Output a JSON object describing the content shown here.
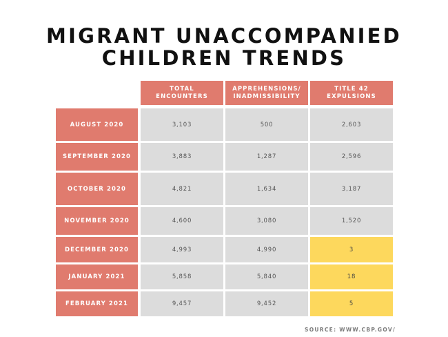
{
  "title_line1": "MIGRANT UNACCOMPANIED",
  "title_line2": "CHILDREN TRENDS",
  "source": "SOURCE: WWW.CBP.GOV/",
  "highlight_color": "#fdd85d",
  "header_color": "#e07b6e",
  "cell_color": "#dcdcdc",
  "columns": [
    {
      "line1": "TOTAL",
      "line2": "ENCOUNTERS"
    },
    {
      "line1": "APPREHENSIONS/",
      "line2": "INADMISSIBILITY"
    },
    {
      "line1": "TITLE 42",
      "line2": "EXPULSIONS"
    }
  ],
  "rows": [
    {
      "label": "AUGUST 2020",
      "total": "3,103",
      "apprehensions": "500",
      "expulsions": "2,603"
    },
    {
      "label": "SEPTEMBER 2020",
      "total": "3,883",
      "apprehensions": "1,287",
      "expulsions": "2,596"
    },
    {
      "label": "OCTOBER 2020",
      "total": "4,821",
      "apprehensions": "1,634",
      "expulsions": "3,187"
    },
    {
      "label": "NOVEMBER 2020",
      "total": "4,600",
      "apprehensions": "3,080",
      "expulsions": "1,520"
    },
    {
      "label": "DECEMBER 2020",
      "total": "4,993",
      "apprehensions": "4,990",
      "expulsions": "3"
    },
    {
      "label": "JANUARY 2021",
      "total": "5,858",
      "apprehensions": "5,840",
      "expulsions": "18"
    },
    {
      "label": "FEBRUARY 2021",
      "total": "9,457",
      "apprehensions": "9,452",
      "expulsions": "5"
    }
  ],
  "chart_data": {
    "type": "table",
    "title": "MIGRANT UNACCOMPANIED CHILDREN TRENDS",
    "columns": [
      "TOTAL ENCOUNTERS",
      "APPREHENSIONS/ INADMISSIBILITY",
      "TITLE 42 EXPULSIONS"
    ],
    "categories": [
      "AUGUST 2020",
      "SEPTEMBER 2020",
      "OCTOBER 2020",
      "NOVEMBER 2020",
      "DECEMBER 2020",
      "JANUARY 2021",
      "FEBRUARY 2021"
    ],
    "series": [
      {
        "name": "TOTAL ENCOUNTERS",
        "values": [
          3103,
          3883,
          4821,
          4600,
          4993,
          5858,
          9457
        ]
      },
      {
        "name": "APPREHENSIONS/ INADMISSIBILITY",
        "values": [
          500,
          1287,
          1634,
          3080,
          4990,
          5840,
          9452
        ]
      },
      {
        "name": "TITLE 42 EXPULSIONS",
        "values": [
          2603,
          2596,
          3187,
          1520,
          3,
          18,
          5
        ]
      }
    ],
    "highlighted_cells": [
      {
        "row": "DECEMBER 2020",
        "column": "TITLE 42 EXPULSIONS"
      },
      {
        "row": "JANUARY 2021",
        "column": "TITLE 42 EXPULSIONS"
      },
      {
        "row": "FEBRUARY 2021",
        "column": "TITLE 42 EXPULSIONS"
      }
    ]
  }
}
